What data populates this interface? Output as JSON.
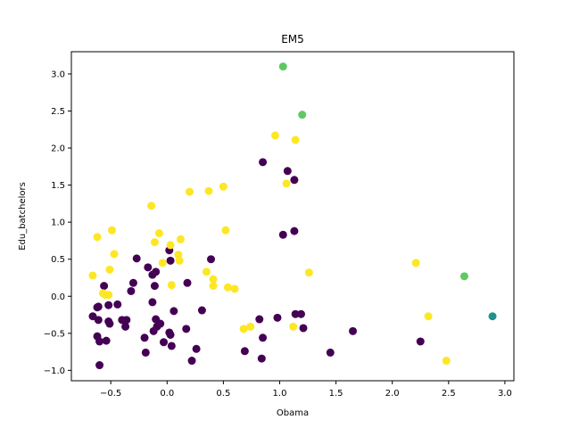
{
  "chart_data": {
    "type": "scatter",
    "title": "EM5",
    "xlabel": "Obama",
    "ylabel": "Edu_batchelors",
    "xlim": [
      -0.85,
      3.08
    ],
    "ylim": [
      -1.14,
      3.3
    ],
    "xticks": [
      "−0.5",
      "0.0",
      "0.5",
      "1.0",
      "1.5",
      "2.0",
      "2.5",
      "3.0"
    ],
    "xtick_values": [
      -0.5,
      0.0,
      0.5,
      1.0,
      1.5,
      2.0,
      2.5,
      3.0
    ],
    "yticks": [
      "−1.0",
      "−0.5",
      "0.0",
      "0.5",
      "1.0",
      "1.5",
      "2.0",
      "2.5",
      "3.0"
    ],
    "ytick_values": [
      -1.0,
      -0.5,
      0.0,
      0.5,
      1.0,
      1.5,
      2.0,
      2.5,
      3.0
    ],
    "grid": false,
    "colors": {
      "0": "#440154",
      "1": "#21918c",
      "2": "#5ec962",
      "3": "#fde725"
    },
    "points": [
      {
        "x": 0.85,
        "y": 1.81,
        "c": 0
      },
      {
        "x": 1.07,
        "y": 1.69,
        "c": 0
      },
      {
        "x": 1.13,
        "y": 1.57,
        "c": 0
      },
      {
        "x": 1.03,
        "y": 0.83,
        "c": 0
      },
      {
        "x": 1.13,
        "y": 0.88,
        "c": 0
      },
      {
        "x": 0.02,
        "y": 0.62,
        "c": 0
      },
      {
        "x": -0.27,
        "y": 0.51,
        "c": 0
      },
      {
        "x": 0.03,
        "y": 0.48,
        "c": 0
      },
      {
        "x": 0.39,
        "y": 0.5,
        "c": 0
      },
      {
        "x": -0.17,
        "y": 0.39,
        "c": 0
      },
      {
        "x": -0.1,
        "y": 0.33,
        "c": 0
      },
      {
        "x": -0.13,
        "y": 0.29,
        "c": 0
      },
      {
        "x": -0.3,
        "y": 0.18,
        "c": 0
      },
      {
        "x": -0.11,
        "y": 0.14,
        "c": 0
      },
      {
        "x": 0.18,
        "y": 0.18,
        "c": 0
      },
      {
        "x": -0.56,
        "y": 0.14,
        "c": 0
      },
      {
        "x": -0.32,
        "y": 0.07,
        "c": 0
      },
      {
        "x": -0.13,
        "y": -0.08,
        "c": 0
      },
      {
        "x": -0.61,
        "y": -0.14,
        "c": 0
      },
      {
        "x": -0.62,
        "y": -0.15,
        "c": 0
      },
      {
        "x": -0.52,
        "y": -0.12,
        "c": 0
      },
      {
        "x": -0.44,
        "y": -0.11,
        "c": 0
      },
      {
        "x": -0.66,
        "y": -0.27,
        "c": 0
      },
      {
        "x": -0.61,
        "y": -0.32,
        "c": 0
      },
      {
        "x": -0.52,
        "y": -0.34,
        "c": 0
      },
      {
        "x": -0.51,
        "y": -0.37,
        "c": 0
      },
      {
        "x": -0.4,
        "y": -0.32,
        "c": 0
      },
      {
        "x": -0.36,
        "y": -0.32,
        "c": 0
      },
      {
        "x": -0.37,
        "y": -0.41,
        "c": 0
      },
      {
        "x": -0.1,
        "y": -0.31,
        "c": 0
      },
      {
        "x": -0.06,
        "y": -0.37,
        "c": 0
      },
      {
        "x": 0.06,
        "y": -0.2,
        "c": 0
      },
      {
        "x": 0.31,
        "y": -0.19,
        "c": 0
      },
      {
        "x": -0.09,
        "y": -0.41,
        "c": 0
      },
      {
        "x": -0.12,
        "y": -0.47,
        "c": 0
      },
      {
        "x": 0.02,
        "y": -0.49,
        "c": 0
      },
      {
        "x": 0.03,
        "y": -0.52,
        "c": 0
      },
      {
        "x": 0.17,
        "y": -0.44,
        "c": 0
      },
      {
        "x": -0.2,
        "y": -0.56,
        "c": 0
      },
      {
        "x": -0.03,
        "y": -0.62,
        "c": 0
      },
      {
        "x": 0.04,
        "y": -0.67,
        "c": 0
      },
      {
        "x": 0.26,
        "y": -0.71,
        "c": 0
      },
      {
        "x": -0.19,
        "y": -0.76,
        "c": 0
      },
      {
        "x": 0.22,
        "y": -0.87,
        "c": 0
      },
      {
        "x": -0.62,
        "y": -0.54,
        "c": 0
      },
      {
        "x": -0.6,
        "y": -0.61,
        "c": 0
      },
      {
        "x": -0.54,
        "y": -0.6,
        "c": 0
      },
      {
        "x": -0.6,
        "y": -0.93,
        "c": 0
      },
      {
        "x": 0.82,
        "y": -0.31,
        "c": 0
      },
      {
        "x": 0.98,
        "y": -0.29,
        "c": 0
      },
      {
        "x": 1.14,
        "y": -0.24,
        "c": 0
      },
      {
        "x": 1.19,
        "y": -0.24,
        "c": 0
      },
      {
        "x": 1.21,
        "y": -0.43,
        "c": 0
      },
      {
        "x": 1.65,
        "y": -0.47,
        "c": 0
      },
      {
        "x": 0.85,
        "y": -0.56,
        "c": 0
      },
      {
        "x": 2.25,
        "y": -0.61,
        "c": 0
      },
      {
        "x": 0.69,
        "y": -0.74,
        "c": 0
      },
      {
        "x": 1.45,
        "y": -0.76,
        "c": 0
      },
      {
        "x": 0.84,
        "y": -0.84,
        "c": 0
      },
      {
        "x": 2.89,
        "y": -0.27,
        "c": 1
      },
      {
        "x": 1.03,
        "y": 3.1,
        "c": 2
      },
      {
        "x": 1.2,
        "y": 2.45,
        "c": 2
      },
      {
        "x": 2.64,
        "y": 0.27,
        "c": 2
      },
      {
        "x": 0.96,
        "y": 2.17,
        "c": 3
      },
      {
        "x": 1.14,
        "y": 2.11,
        "c": 3
      },
      {
        "x": 1.06,
        "y": 1.52,
        "c": 3
      },
      {
        "x": 0.5,
        "y": 1.48,
        "c": 3
      },
      {
        "x": 0.37,
        "y": 1.42,
        "c": 3
      },
      {
        "x": 0.2,
        "y": 1.41,
        "c": 3
      },
      {
        "x": -0.14,
        "y": 1.22,
        "c": 3
      },
      {
        "x": 0.52,
        "y": 0.89,
        "c": 3
      },
      {
        "x": -0.49,
        "y": 0.89,
        "c": 3
      },
      {
        "x": -0.07,
        "y": 0.85,
        "c": 3
      },
      {
        "x": -0.62,
        "y": 0.8,
        "c": 3
      },
      {
        "x": 0.12,
        "y": 0.77,
        "c": 3
      },
      {
        "x": -0.11,
        "y": 0.73,
        "c": 3
      },
      {
        "x": 0.03,
        "y": 0.69,
        "c": 3
      },
      {
        "x": -0.47,
        "y": 0.57,
        "c": 3
      },
      {
        "x": 0.1,
        "y": 0.56,
        "c": 3
      },
      {
        "x": 0.11,
        "y": 0.48,
        "c": 3
      },
      {
        "x": -0.04,
        "y": 0.45,
        "c": 3
      },
      {
        "x": -0.51,
        "y": 0.36,
        "c": 3
      },
      {
        "x": 0.35,
        "y": 0.33,
        "c": 3
      },
      {
        "x": -0.66,
        "y": 0.28,
        "c": 3
      },
      {
        "x": 0.41,
        "y": 0.23,
        "c": 3
      },
      {
        "x": 0.41,
        "y": 0.14,
        "c": 3
      },
      {
        "x": 0.04,
        "y": 0.15,
        "c": 3
      },
      {
        "x": 0.54,
        "y": 0.12,
        "c": 3
      },
      {
        "x": 0.6,
        "y": 0.1,
        "c": 3
      },
      {
        "x": -0.57,
        "y": 0.04,
        "c": 3
      },
      {
        "x": -0.55,
        "y": 0.02,
        "c": 3
      },
      {
        "x": -0.52,
        "y": 0.02,
        "c": 3
      },
      {
        "x": 1.26,
        "y": 0.32,
        "c": 3
      },
      {
        "x": 2.21,
        "y": 0.45,
        "c": 3
      },
      {
        "x": 2.32,
        "y": -0.27,
        "c": 3
      },
      {
        "x": 1.12,
        "y": -0.41,
        "c": 3
      },
      {
        "x": 0.68,
        "y": -0.44,
        "c": 3
      },
      {
        "x": 0.74,
        "y": -0.41,
        "c": 3
      },
      {
        "x": 2.48,
        "y": -0.87,
        "c": 3
      }
    ]
  }
}
